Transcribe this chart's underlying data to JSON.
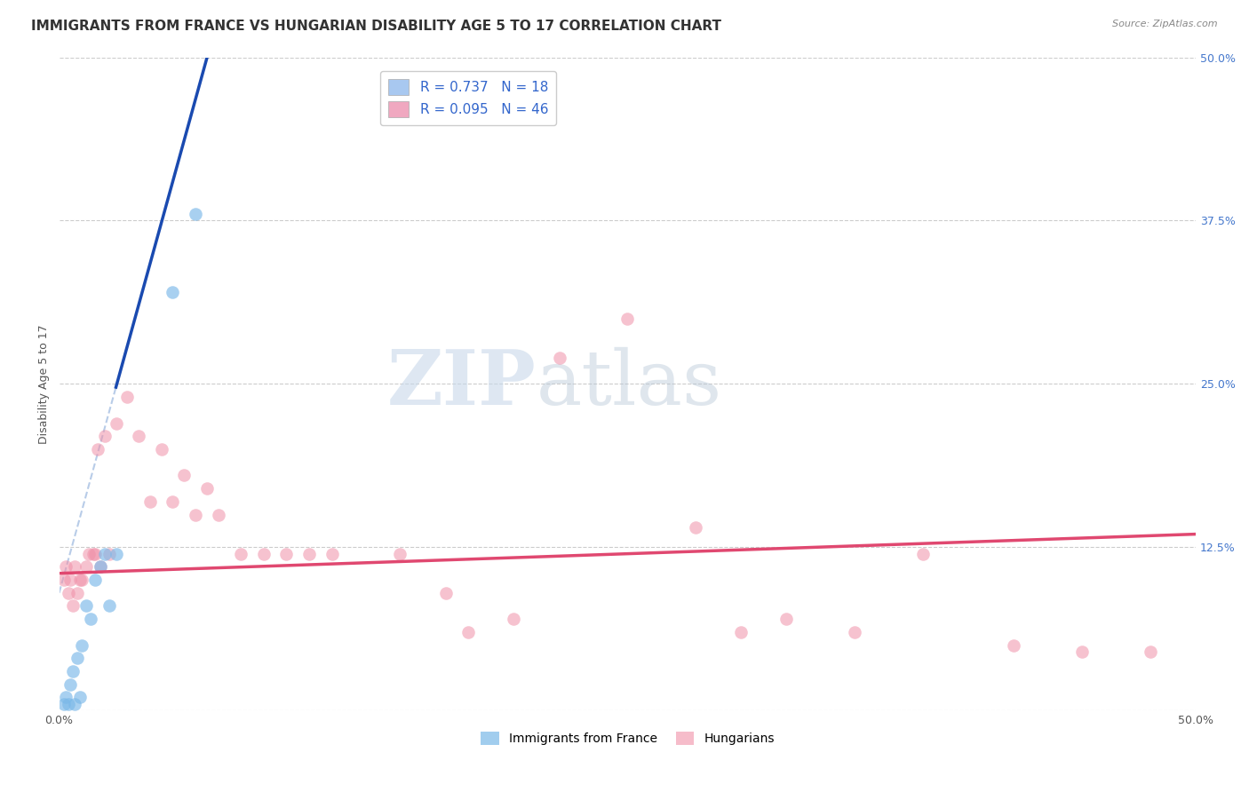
{
  "title": "IMMIGRANTS FROM FRANCE VS HUNGARIAN DISABILITY AGE 5 TO 17 CORRELATION CHART",
  "source": "Source: ZipAtlas.com",
  "ylabel": "Disability Age 5 to 17",
  "xlim": [
    0.0,
    0.5
  ],
  "ylim": [
    0.0,
    0.5
  ],
  "yticks": [
    0.0,
    0.125,
    0.25,
    0.375,
    0.5
  ],
  "xticks": [
    0.0,
    0.5
  ],
  "xtick_labels": [
    "0.0%",
    "50.0%"
  ],
  "right_ytick_labels": [
    "50.0%",
    "37.5%",
    "25.0%",
    "12.5%"
  ],
  "right_yticks_pos": [
    0.5,
    0.375,
    0.25,
    0.125
  ],
  "legend_r1": "R = 0.737   N = 18",
  "legend_r2": "R = 0.095   N = 46",
  "legend_color1": "#a8c8f0",
  "legend_color2": "#f0a8c0",
  "france_color": "#7ab8e8",
  "hungarian_color": "#f090a8",
  "france_trendline_color": "#1a4ab0",
  "hungarian_trendline_color": "#e04870",
  "trendline_dashed_color": "#b8cce8",
  "background_color": "#ffffff",
  "grid_color": "#cccccc",
  "france_scatter": [
    [
      0.002,
      0.005
    ],
    [
      0.003,
      0.01
    ],
    [
      0.004,
      0.005
    ],
    [
      0.005,
      0.02
    ],
    [
      0.006,
      0.03
    ],
    [
      0.007,
      0.005
    ],
    [
      0.008,
      0.04
    ],
    [
      0.009,
      0.01
    ],
    [
      0.01,
      0.05
    ],
    [
      0.012,
      0.08
    ],
    [
      0.014,
      0.07
    ],
    [
      0.016,
      0.1
    ],
    [
      0.018,
      0.11
    ],
    [
      0.02,
      0.12
    ],
    [
      0.022,
      0.08
    ],
    [
      0.025,
      0.12
    ],
    [
      0.05,
      0.32
    ],
    [
      0.06,
      0.38
    ]
  ],
  "hungarian_scatter": [
    [
      0.002,
      0.1
    ],
    [
      0.003,
      0.11
    ],
    [
      0.004,
      0.09
    ],
    [
      0.005,
      0.1
    ],
    [
      0.006,
      0.08
    ],
    [
      0.007,
      0.11
    ],
    [
      0.008,
      0.09
    ],
    [
      0.009,
      0.1
    ],
    [
      0.01,
      0.1
    ],
    [
      0.012,
      0.11
    ],
    [
      0.013,
      0.12
    ],
    [
      0.015,
      0.12
    ],
    [
      0.016,
      0.12
    ],
    [
      0.017,
      0.2
    ],
    [
      0.018,
      0.11
    ],
    [
      0.02,
      0.21
    ],
    [
      0.022,
      0.12
    ],
    [
      0.025,
      0.22
    ],
    [
      0.03,
      0.24
    ],
    [
      0.035,
      0.21
    ],
    [
      0.04,
      0.16
    ],
    [
      0.045,
      0.2
    ],
    [
      0.05,
      0.16
    ],
    [
      0.055,
      0.18
    ],
    [
      0.06,
      0.15
    ],
    [
      0.065,
      0.17
    ],
    [
      0.07,
      0.15
    ],
    [
      0.08,
      0.12
    ],
    [
      0.09,
      0.12
    ],
    [
      0.1,
      0.12
    ],
    [
      0.11,
      0.12
    ],
    [
      0.12,
      0.12
    ],
    [
      0.15,
      0.12
    ],
    [
      0.17,
      0.09
    ],
    [
      0.18,
      0.06
    ],
    [
      0.2,
      0.07
    ],
    [
      0.22,
      0.27
    ],
    [
      0.25,
      0.3
    ],
    [
      0.28,
      0.14
    ],
    [
      0.3,
      0.06
    ],
    [
      0.32,
      0.07
    ],
    [
      0.35,
      0.06
    ],
    [
      0.38,
      0.12
    ],
    [
      0.42,
      0.05
    ],
    [
      0.45,
      0.045
    ],
    [
      0.48,
      0.045
    ]
  ],
  "watermark_zip": "ZIP",
  "watermark_atlas": "atlas",
  "title_fontsize": 11,
  "axis_fontsize": 9,
  "tick_fontsize": 9,
  "tick_color": "#4477cc"
}
